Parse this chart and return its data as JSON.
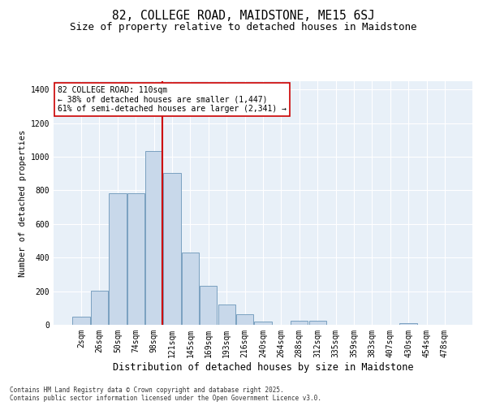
{
  "title": "82, COLLEGE ROAD, MAIDSTONE, ME15 6SJ",
  "subtitle": "Size of property relative to detached houses in Maidstone",
  "xlabel": "Distribution of detached houses by size in Maidstone",
  "ylabel": "Number of detached properties",
  "categories": [
    "2sqm",
    "26sqm",
    "50sqm",
    "74sqm",
    "98sqm",
    "121sqm",
    "145sqm",
    "169sqm",
    "193sqm",
    "216sqm",
    "240sqm",
    "264sqm",
    "288sqm",
    "312sqm",
    "335sqm",
    "359sqm",
    "383sqm",
    "407sqm",
    "430sqm",
    "454sqm",
    "478sqm"
  ],
  "bar_heights": [
    50,
    205,
    785,
    785,
    1035,
    905,
    430,
    230,
    120,
    65,
    20,
    0,
    25,
    25,
    0,
    0,
    0,
    0,
    10,
    0,
    0
  ],
  "bar_color": "#c8d8ea",
  "bar_edge_color": "#7aa0c0",
  "vline_color": "#cc0000",
  "vline_pos": 4.45,
  "annotation_text": "82 COLLEGE ROAD: 110sqm\n← 38% of detached houses are smaller (1,447)\n61% of semi-detached houses are larger (2,341) →",
  "annotation_box_color": "#ffffff",
  "annotation_box_edge": "#cc0000",
  "annotation_fontsize": 7.0,
  "ylim": [
    0,
    1450
  ],
  "yticks": [
    0,
    200,
    400,
    600,
    800,
    1000,
    1200,
    1400
  ],
  "plot_bg": "#e8f0f8",
  "fig_bg": "#ffffff",
  "grid_color": "#ffffff",
  "footer": "Contains HM Land Registry data © Crown copyright and database right 2025.\nContains public sector information licensed under the Open Government Licence v3.0.",
  "title_fontsize": 10.5,
  "subtitle_fontsize": 9,
  "xlabel_fontsize": 8.5,
  "ylabel_fontsize": 7.5,
  "tick_fontsize": 7,
  "footer_fontsize": 5.5
}
